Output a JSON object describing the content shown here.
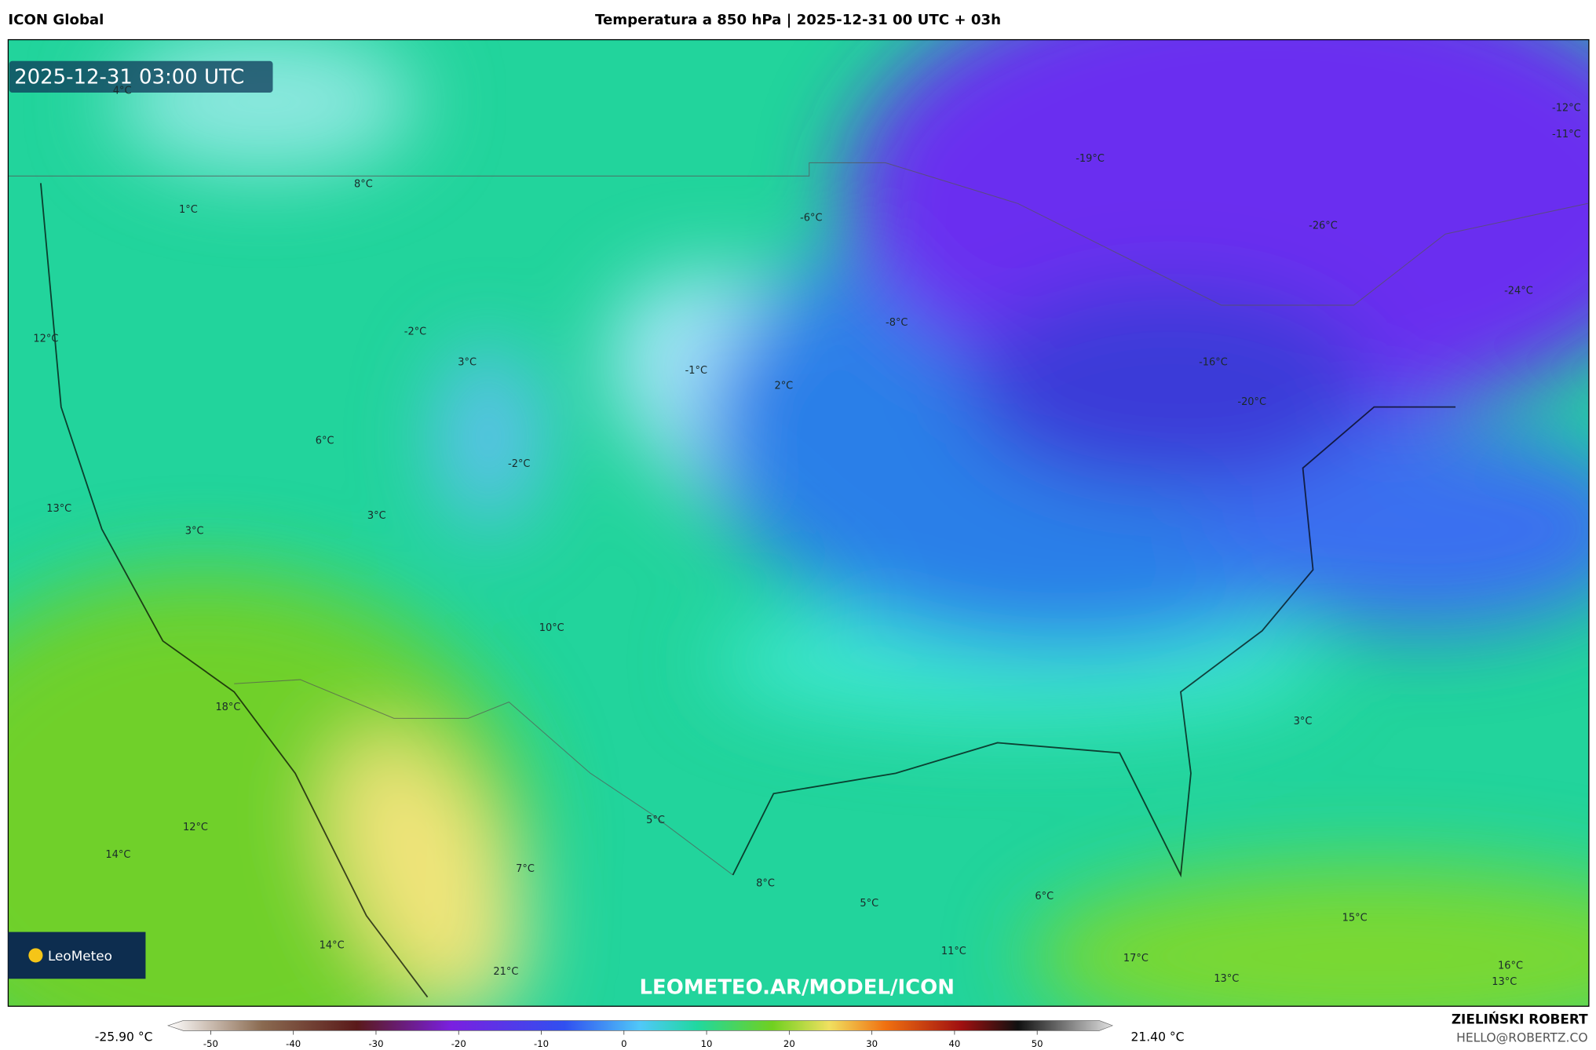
{
  "header": {
    "model": "ICON Global",
    "title": "Temperatura a 850 hPa | 2025-12-31 00 UTC + 03h"
  },
  "map": {
    "timestamp": "2025-12-31 03:00 UTC",
    "watermark": "LEOMETEO.AR/MODEL/ICON",
    "logo": "LeoMeteo",
    "labels": [
      "4°C",
      "8°C",
      "1°C",
      "-2°C",
      "3°C",
      "12°C",
      "-1°C",
      "2°C",
      "6°C",
      "-2°C",
      "13°C",
      "3°C",
      "3°C",
      "10°C",
      "18°C",
      "12°C",
      "14°C",
      "5°C",
      "7°C",
      "8°C",
      "5°C",
      "6°C",
      "14°C",
      "11°C",
      "21°C",
      "17°C",
      "13°C",
      "15°C",
      "16°C",
      "13°C",
      "3°C",
      "-6°C",
      "-8°C",
      "-19°C",
      "-26°C",
      "-16°C",
      "-20°C",
      "-24°C",
      "-12°C",
      "-11°C"
    ]
  },
  "colorbar": {
    "min_label": "-25.90 °C",
    "max_label": "21.40 °C",
    "ticks": [
      -50,
      -40,
      -30,
      -20,
      -10,
      0,
      10,
      20,
      30,
      40,
      50
    ]
  },
  "footer": {
    "author": "ZIELIŃSKI ROBERT",
    "contact": "HELLO@ROBERTZ.CO"
  }
}
